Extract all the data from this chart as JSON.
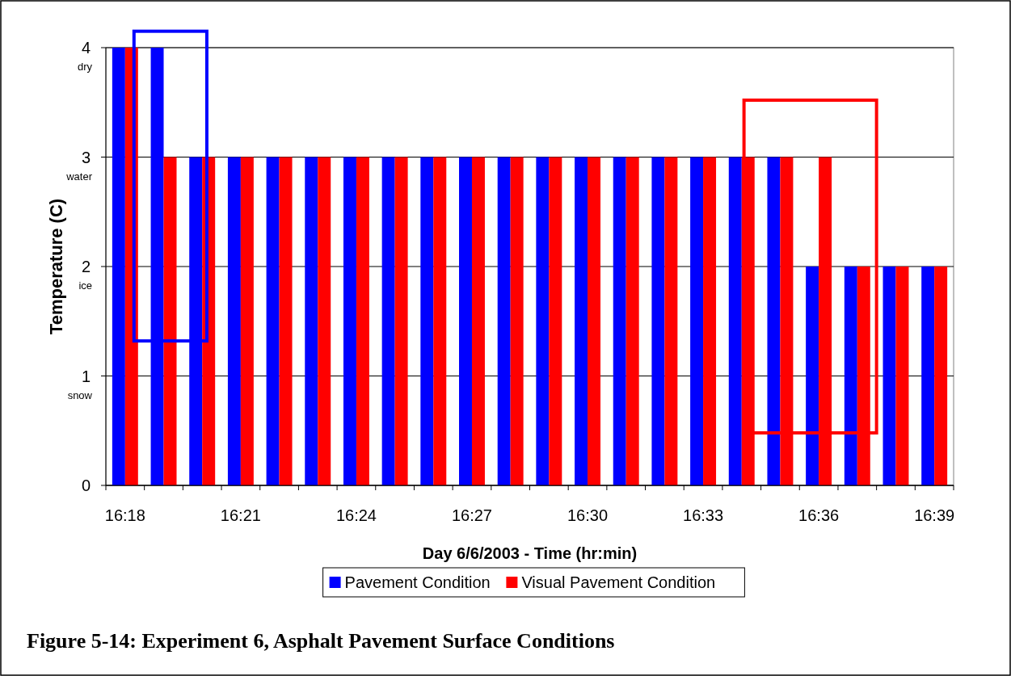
{
  "chart_data": {
    "type": "bar",
    "xlabel": "Day 6/6/2003 - Time (hr:min)",
    "ylabel": "Temperature (C)",
    "categories": [
      "16:18",
      null,
      null,
      "16:21",
      null,
      null,
      "16:24",
      null,
      null,
      "16:27",
      null,
      null,
      "16:30",
      null,
      null,
      "16:33",
      null,
      null,
      "16:36",
      null,
      null,
      "16:39"
    ],
    "series": [
      {
        "name": "Pavement Condition",
        "color": "#0000ff",
        "values": [
          4,
          4,
          3,
          3,
          3,
          3,
          3,
          3,
          3,
          3,
          3,
          3,
          3,
          3,
          3,
          3,
          3,
          3,
          2,
          2,
          2,
          2
        ]
      },
      {
        "name": "Visual Pavement Condition",
        "color": "#ff0000",
        "values": [
          4,
          3,
          3,
          3,
          3,
          3,
          3,
          3,
          3,
          3,
          3,
          3,
          3,
          3,
          3,
          3,
          3,
          3,
          3,
          2,
          2,
          2
        ]
      }
    ],
    "ylim": [
      0,
      4
    ],
    "yticks": [
      0,
      {
        "value": 1,
        "label": "1\nsnow"
      },
      {
        "value": 2,
        "label": "2\nice"
      },
      {
        "value": 3,
        "label": "3\nwater"
      },
      {
        "value": 4,
        "label": "4\ndry"
      }
    ],
    "grid": "y",
    "legend": "bottom",
    "annotations": [
      "Figure 5-14: Experiment 6, Asphalt Pavement Surface Conditions"
    ]
  }
}
